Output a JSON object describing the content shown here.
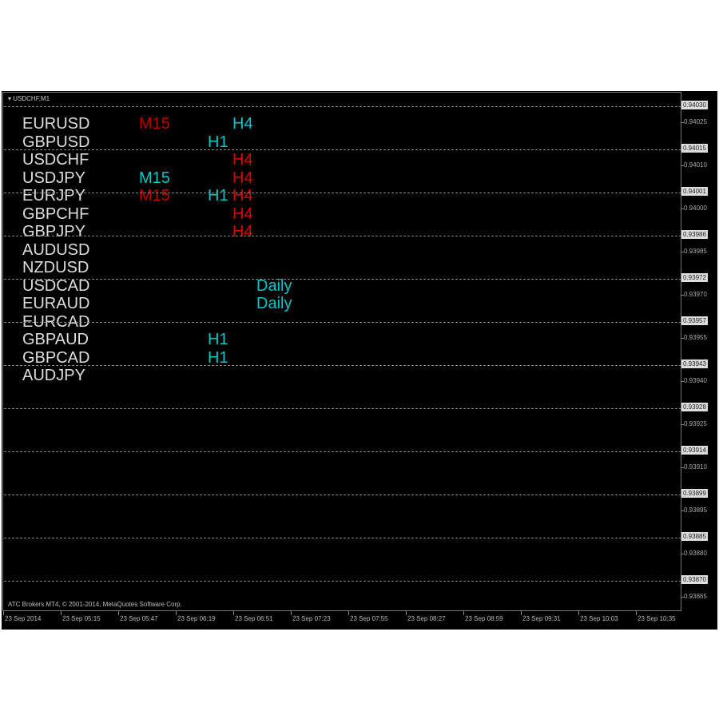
{
  "window": {
    "title": "USDCHF,M1",
    "footer": "ATC Brokers MT4, © 2001-2014, MetaQuotes Software Corp."
  },
  "colors": {
    "background": "#000000",
    "symbol": "#dddddd",
    "red": "#e00000",
    "dark_red": "#c00000",
    "cyan": "#00c8c8"
  },
  "rows": [
    {
      "symbol": "EURUSD",
      "signals": [
        {
          "tf": "M15",
          "color": "dark_red"
        },
        {
          "tf": "H4",
          "color": "cyan"
        }
      ]
    },
    {
      "symbol": "GBPUSD",
      "signals": [
        {
          "tf": "H1",
          "color": "cyan"
        }
      ]
    },
    {
      "symbol": "USDCHF",
      "signals": [
        {
          "tf": "H4",
          "color": "red"
        }
      ]
    },
    {
      "symbol": "USDJPY",
      "signals": [
        {
          "tf": "M15",
          "color": "cyan"
        },
        {
          "tf": "H4",
          "color": "red"
        }
      ]
    },
    {
      "symbol": "EURJPY",
      "signals": [
        {
          "tf": "M15",
          "color": "dark_red"
        },
        {
          "tf": "H1",
          "color": "cyan"
        },
        {
          "tf": "H4",
          "color": "red"
        }
      ]
    },
    {
      "symbol": "GBPCHF",
      "signals": [
        {
          "tf": "H4",
          "color": "red"
        }
      ]
    },
    {
      "symbol": "GBPJPY",
      "signals": [
        {
          "tf": "H4",
          "color": "red"
        }
      ]
    },
    {
      "symbol": "AUDUSD",
      "signals": []
    },
    {
      "symbol": "NZDUSD",
      "signals": []
    },
    {
      "symbol": "USDCAD",
      "signals": [
        {
          "tf": "Daily",
          "color": "cyan"
        }
      ]
    },
    {
      "symbol": "EURAUD",
      "signals": [
        {
          "tf": "Daily",
          "color": "cyan"
        }
      ]
    },
    {
      "symbol": "EURCAD",
      "signals": []
    },
    {
      "symbol": "GBPAUD",
      "signals": [
        {
          "tf": "H1",
          "color": "cyan"
        }
      ]
    },
    {
      "symbol": "GBPCAD",
      "signals": [
        {
          "tf": "H1",
          "color": "cyan"
        }
      ]
    },
    {
      "symbol": "AUDJPY",
      "signals": []
    }
  ],
  "price_axis": {
    "highlighted": [
      "0.94030",
      "0.94015",
      "0.94001",
      "0.93986",
      "0.93972",
      "0.93957",
      "0.93943",
      "0.93928",
      "0.93914",
      "0.93899",
      "0.93885",
      "0.93870"
    ],
    "labels": [
      "0.94025",
      "0.94010",
      "0.94000",
      "0.93985",
      "0.93970",
      "0.93955",
      "0.93940",
      "0.93925",
      "0.93910",
      "0.93895",
      "0.93880",
      "0.93865"
    ]
  },
  "time_axis": [
    "23 Sep 2014",
    "23 Sep 05:15",
    "23 Sep 05:47",
    "23 Sep 06:19",
    "23 Sep 06:51",
    "23 Sep 07:23",
    "23 Sep 07:55",
    "23 Sep 08:27",
    "23 Sep 08:59",
    "23 Sep 09:31",
    "23 Sep 10:03",
    "23 Sep 10:35"
  ]
}
